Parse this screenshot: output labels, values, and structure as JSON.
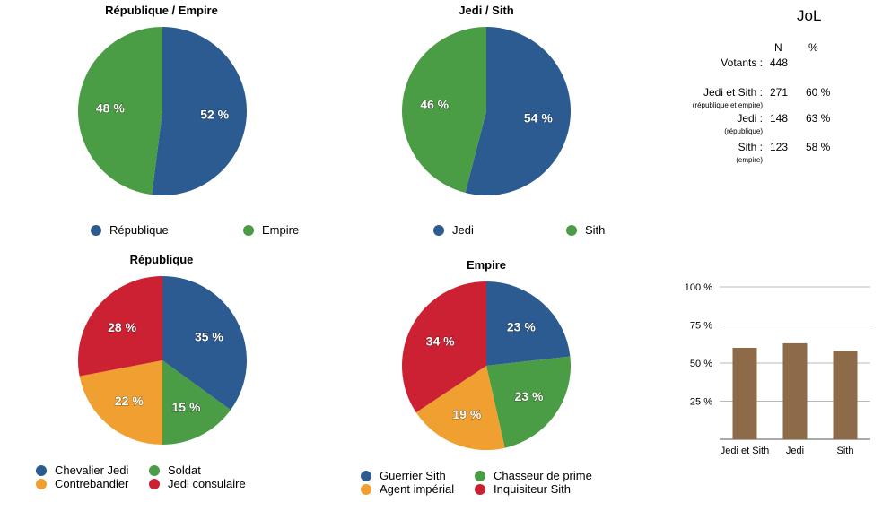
{
  "chart_data": [
    {
      "type": "pie",
      "title": "République / Empire",
      "slices": [
        {
          "label": "République",
          "value": 52,
          "text": "52 %",
          "color": "#2b5b90"
        },
        {
          "label": "Empire",
          "value": 48,
          "text": "48 %",
          "color": "#4a9c45"
        }
      ],
      "legend": [
        "République",
        "Empire"
      ]
    },
    {
      "type": "pie",
      "title": "Jedi / Sith",
      "slices": [
        {
          "label": "Jedi",
          "value": 54,
          "text": "54 %",
          "color": "#2b5b90"
        },
        {
          "label": "Sith",
          "value": 46,
          "text": "46 %",
          "color": "#4a9c45"
        }
      ],
      "legend": [
        "Jedi",
        "Sith"
      ]
    },
    {
      "type": "pie",
      "title": "République",
      "slices": [
        {
          "label": "Chevalier Jedi",
          "value": 35,
          "text": "35 %",
          "color": "#2b5b90"
        },
        {
          "label": "Soldat",
          "value": 15,
          "text": "15 %",
          "color": "#4a9c45"
        },
        {
          "label": "Contrebandier",
          "value": 22,
          "text": "22 %",
          "color": "#f0a030"
        },
        {
          "label": "Jedi consulaire",
          "value": 28,
          "text": "28 %",
          "color": "#cc2033"
        }
      ],
      "legend": [
        "Chevalier Jedi",
        "Soldat",
        "Contrebandier",
        "Jedi consulaire"
      ]
    },
    {
      "type": "pie",
      "title": "Empire",
      "slices": [
        {
          "label": "Guerrier Sith",
          "value": 23,
          "text": "23 %",
          "color": "#2b5b90"
        },
        {
          "label": "Chasseur de prime",
          "value": 23,
          "text": "23 %",
          "color": "#4a9c45"
        },
        {
          "label": "Agent impérial",
          "value": 19,
          "text": "19 %",
          "color": "#f0a030"
        },
        {
          "label": "Inquisiteur Sith",
          "value": 34,
          "text": "34 %",
          "color": "#cc2033"
        }
      ],
      "legend": [
        "Guerrier Sith",
        "Chasseur de prime",
        "Agent impérial",
        "Inquisiteur Sith"
      ]
    },
    {
      "type": "bar",
      "title": "",
      "categories": [
        "Jedi et Sith",
        "Jedi",
        "Sith"
      ],
      "values": [
        60,
        63,
        58
      ],
      "ylim": [
        0,
        100
      ],
      "yticks": [
        "25 %",
        "50 %",
        "75 %",
        "100 %"
      ],
      "grid": true,
      "color": "#8d6b48"
    }
  ],
  "jol": {
    "title": "JoL",
    "col_n": "N",
    "col_pct": "%",
    "votants_label": "Votants :",
    "votants_n": "448",
    "rows": [
      {
        "label": "Jedi et Sith :",
        "sub": "(république et empire)",
        "n": "271",
        "pct": "60 %"
      },
      {
        "label": "Jedi :",
        "sub": "(république)",
        "n": "148",
        "pct": "63 %"
      },
      {
        "label": "Sith :",
        "sub": "(empire)",
        "n": "123",
        "pct": "58 %"
      }
    ]
  }
}
